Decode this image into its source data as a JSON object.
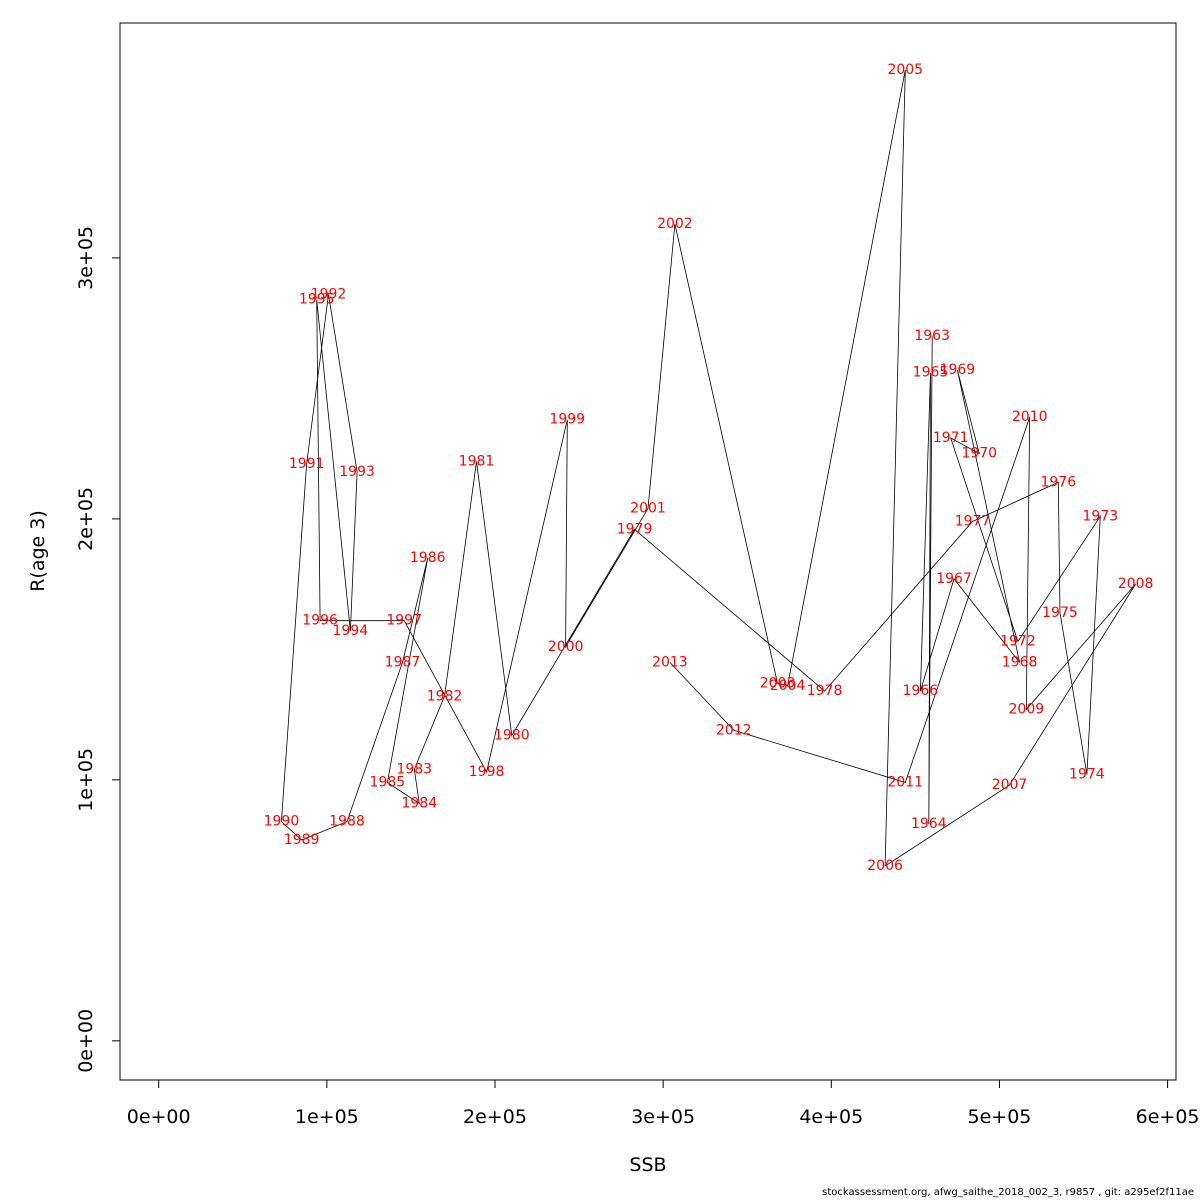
{
  "chart_data": {
    "type": "line",
    "xlabel": "SSB",
    "ylabel": "R(age 3)",
    "xlim": [
      -23000,
      605000
    ],
    "ylim": [
      -15000,
      390000
    ],
    "x_ticks": [
      0,
      100000,
      200000,
      300000,
      400000,
      500000,
      600000
    ],
    "x_tick_labels": [
      "0e+00",
      "1e+05",
      "2e+05",
      "3e+05",
      "4e+05",
      "5e+05",
      "6e+05"
    ],
    "y_ticks": [
      0,
      100000,
      200000,
      300000
    ],
    "y_tick_labels": [
      "0e+00",
      "1e+05",
      "2e+05",
      "3e+05"
    ],
    "grid": false,
    "line_color": "#000000",
    "label_color": "#ff0000",
    "points": [
      {
        "year": "1963",
        "x": 460000,
        "y": 270000
      },
      {
        "year": "1964",
        "x": 458000,
        "y": 83000
      },
      {
        "year": "1965",
        "x": 459000,
        "y": 256000
      },
      {
        "year": "1966",
        "x": 453000,
        "y": 134000
      },
      {
        "year": "1967",
        "x": 473000,
        "y": 177000
      },
      {
        "year": "1968",
        "x": 512000,
        "y": 145000
      },
      {
        "year": "1969",
        "x": 475000,
        "y": 257000
      },
      {
        "year": "1970",
        "x": 488000,
        "y": 225000
      },
      {
        "year": "1971",
        "x": 471000,
        "y": 231000
      },
      {
        "year": "1972",
        "x": 511000,
        "y": 153000
      },
      {
        "year": "1973",
        "x": 560000,
        "y": 201000
      },
      {
        "year": "1974",
        "x": 552000,
        "y": 102000
      },
      {
        "year": "1975",
        "x": 536000,
        "y": 164000
      },
      {
        "year": "1976",
        "x": 535000,
        "y": 214000
      },
      {
        "year": "1977",
        "x": 484000,
        "y": 199000
      },
      {
        "year": "1978",
        "x": 396000,
        "y": 134000
      },
      {
        "year": "1979",
        "x": 283000,
        "y": 196000
      },
      {
        "year": "1980",
        "x": 210000,
        "y": 117000
      },
      {
        "year": "1981",
        "x": 189000,
        "y": 222000
      },
      {
        "year": "1982",
        "x": 170000,
        "y": 132000
      },
      {
        "year": "1983",
        "x": 152000,
        "y": 104000
      },
      {
        "year": "1984",
        "x": 155000,
        "y": 91000
      },
      {
        "year": "1985",
        "x": 136000,
        "y": 99000
      },
      {
        "year": "1986",
        "x": 160000,
        "y": 185000
      },
      {
        "year": "1987",
        "x": 145000,
        "y": 145000
      },
      {
        "year": "1988",
        "x": 112000,
        "y": 84000
      },
      {
        "year": "1989",
        "x": 85000,
        "y": 77000
      },
      {
        "year": "1990",
        "x": 73000,
        "y": 84000
      },
      {
        "year": "1991",
        "x": 88000,
        "y": 221000
      },
      {
        "year": "1992",
        "x": 101000,
        "y": 286000
      },
      {
        "year": "1993",
        "x": 118000,
        "y": 218000
      },
      {
        "year": "1994",
        "x": 114000,
        "y": 157000
      },
      {
        "year": "1995",
        "x": 94000,
        "y": 284000
      },
      {
        "year": "1996",
        "x": 96000,
        "y": 161000
      },
      {
        "year": "1997",
        "x": 146000,
        "y": 161000
      },
      {
        "year": "1998",
        "x": 195000,
        "y": 103000
      },
      {
        "year": "1999",
        "x": 243000,
        "y": 238000
      },
      {
        "year": "2000",
        "x": 242000,
        "y": 151000
      },
      {
        "year": "2001",
        "x": 291000,
        "y": 204000
      },
      {
        "year": "2002",
        "x": 307000,
        "y": 313000
      },
      {
        "year": "2003",
        "x": 368000,
        "y": 137000
      },
      {
        "year": "2004",
        "x": 374000,
        "y": 136000
      },
      {
        "year": "2005",
        "x": 444000,
        "y": 372000
      },
      {
        "year": "2006",
        "x": 432000,
        "y": 67000
      },
      {
        "year": "2007",
        "x": 506000,
        "y": 98000
      },
      {
        "year": "2008",
        "x": 581000,
        "y": 175000
      },
      {
        "year": "2009",
        "x": 516000,
        "y": 127000
      },
      {
        "year": "2010",
        "x": 518000,
        "y": 239000
      },
      {
        "year": "2011",
        "x": 444000,
        "y": 99000
      },
      {
        "year": "2012",
        "x": 342000,
        "y": 119000
      },
      {
        "year": "2013",
        "x": 304000,
        "y": 145000
      }
    ]
  },
  "footer_text": "stockassessment.org, afwg_saithe_2018_002_3, r9857 , git: a295ef2f11ae"
}
